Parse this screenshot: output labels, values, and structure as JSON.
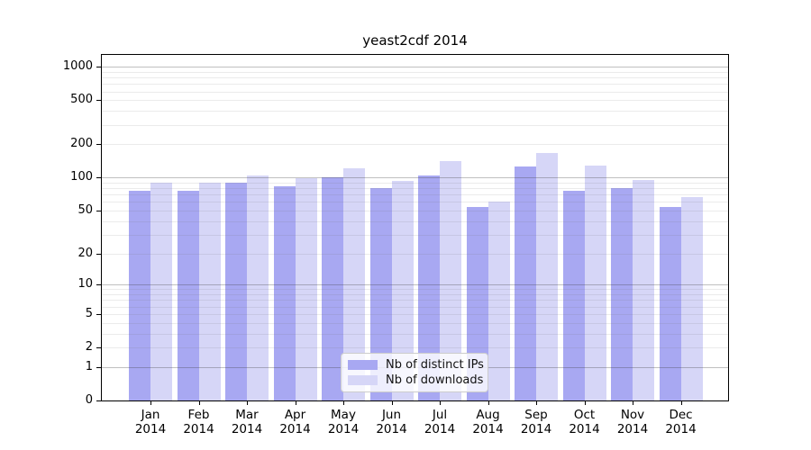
{
  "title": "yeast2cdf 2014",
  "chart_data": {
    "type": "bar",
    "title": "yeast2cdf 2014",
    "categories": [
      "Jan 2014",
      "Feb 2014",
      "Mar 2014",
      "Apr 2014",
      "May 2014",
      "Jun 2014",
      "Jul 2014",
      "Aug 2014",
      "Sep 2014",
      "Oct 2014",
      "Nov 2014",
      "Dec 2014"
    ],
    "series": [
      {
        "name": "Nb of distinct IPs",
        "color": "#a8a8f2",
        "values": [
          76,
          76,
          90,
          83,
          100,
          80,
          105,
          54,
          127,
          76,
          80,
          54
        ]
      },
      {
        "name": "Nb of downloads",
        "color": "#d6d6f7",
        "values": [
          90,
          90,
          105,
          98,
          122,
          93,
          142,
          60,
          168,
          128,
          95,
          66
        ]
      }
    ],
    "yscale": "log10(value+1)",
    "yticks": [
      0,
      1,
      2,
      5,
      10,
      20,
      50,
      100,
      200,
      500,
      1000
    ],
    "ylim": [
      0,
      1278
    ],
    "xlabel": "",
    "ylabel": "",
    "grid": true,
    "legend_position": "lower center"
  },
  "colors": {
    "bar_distinct_ips": "#a8a8f2",
    "bar_downloads": "#d6d6f7",
    "grid_major": "rgba(60,60,60,0.32)",
    "grid_minor": "rgba(110,110,110,0.14)",
    "axis_frame": "#000000",
    "legend_border": "#cccccc"
  }
}
